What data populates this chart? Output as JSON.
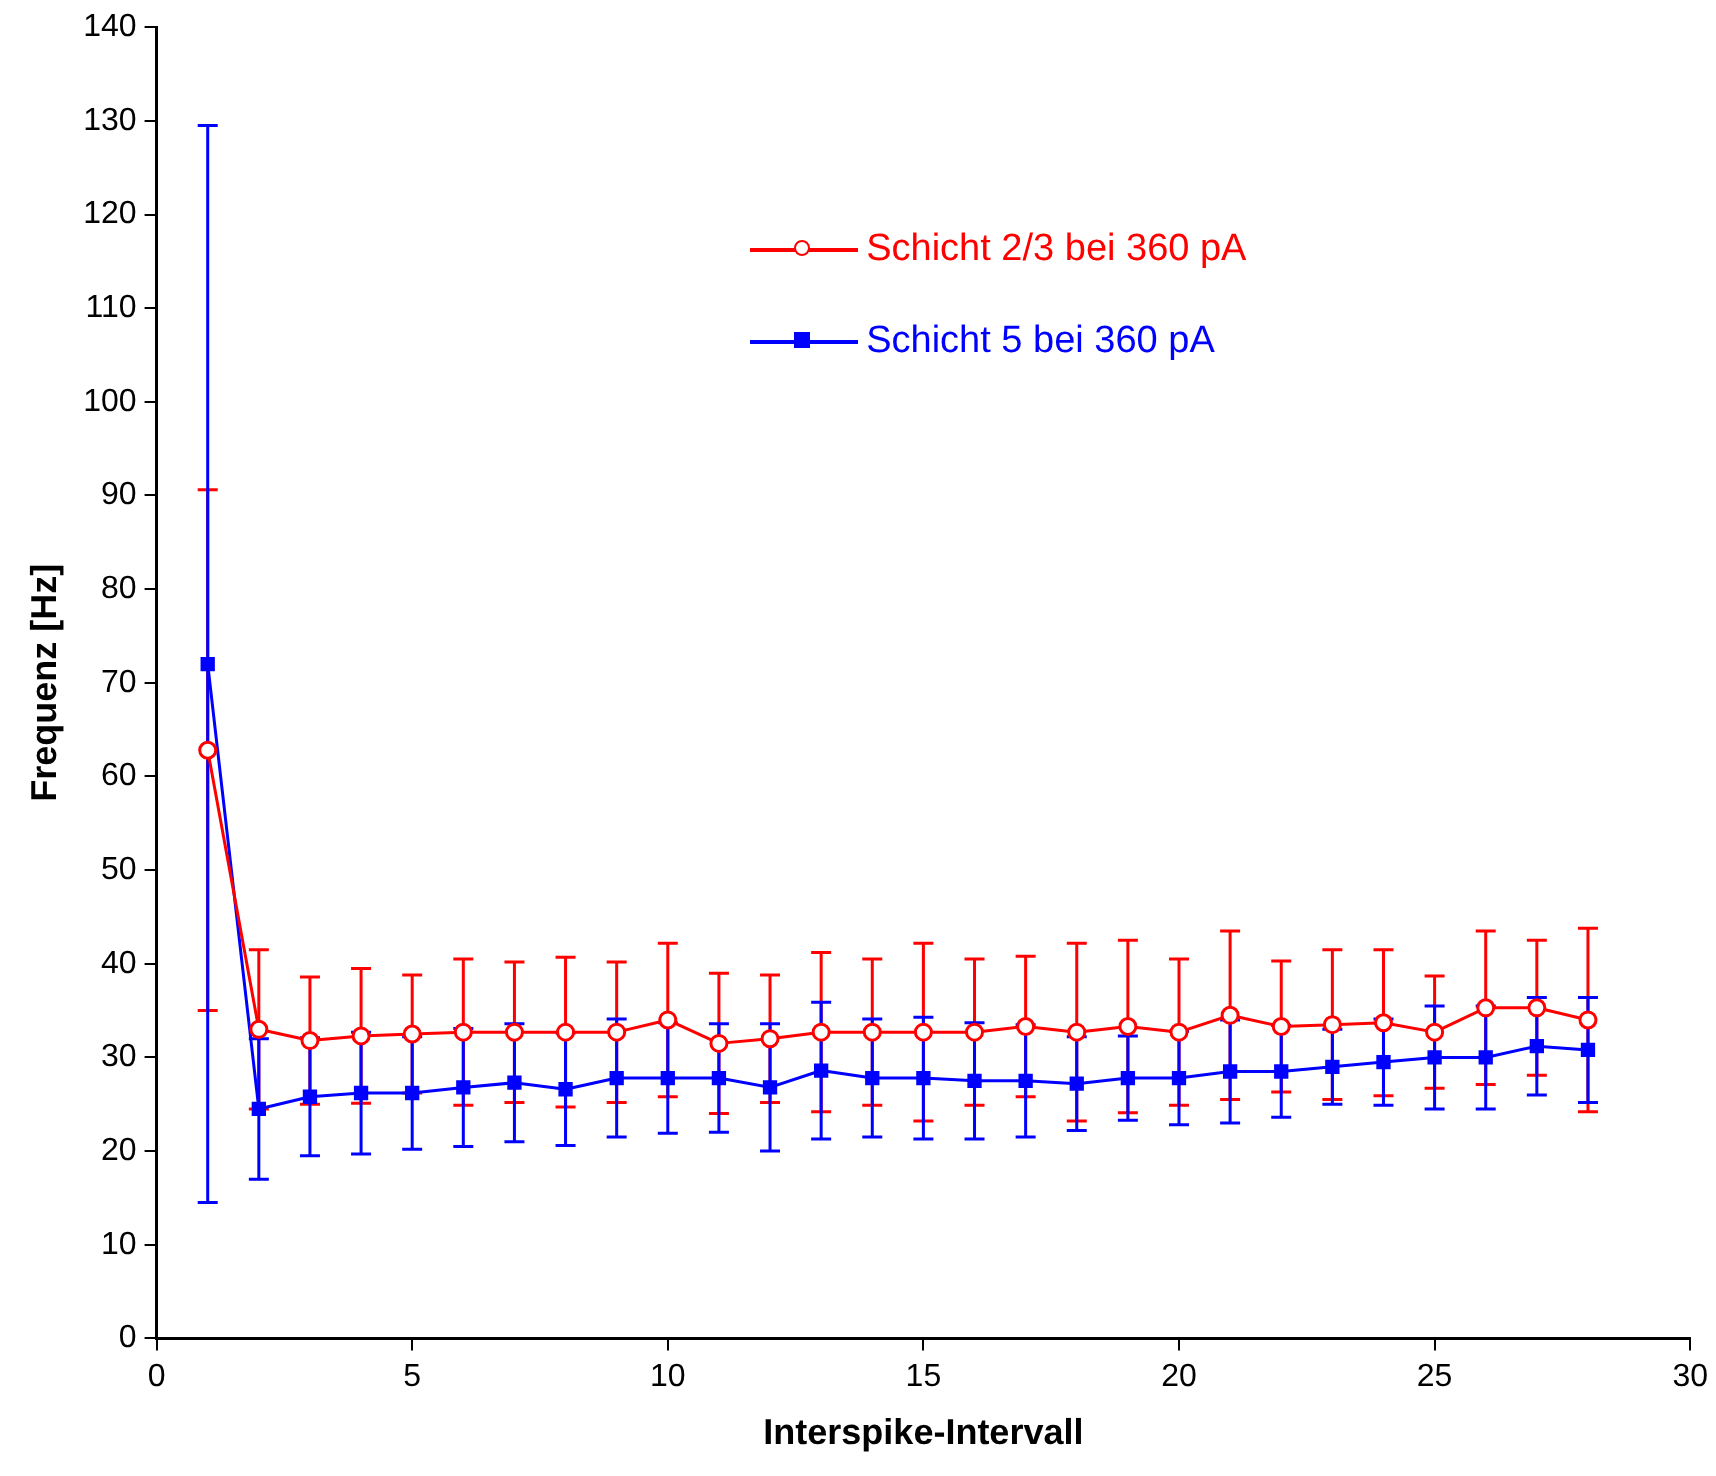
{
  "chart_data": {
    "type": "line",
    "xlabel": "Interspike-Intervall",
    "ylabel": "Frequenz [Hz]",
    "x": [
      1,
      2,
      3,
      4,
      5,
      6,
      7,
      8,
      9,
      10,
      11,
      12,
      13,
      14,
      15,
      16,
      17,
      18,
      19,
      20,
      21,
      22,
      23,
      24,
      25,
      26,
      27,
      28
    ],
    "xlim": [
      0,
      30
    ],
    "xticks": [
      0,
      5,
      10,
      15,
      20,
      25,
      30
    ],
    "ylim": [
      0,
      140
    ],
    "yticks": [
      0,
      10,
      20,
      30,
      40,
      50,
      60,
      70,
      80,
      90,
      100,
      110,
      120,
      130,
      140
    ],
    "grid": false,
    "legend": "top right",
    "line_style": "solid",
    "series": [
      {
        "name": "Schicht 2/3 bei 360 pA",
        "color": "#ff0000",
        "marker": "circle",
        "values": [
          62.8,
          33,
          31.8,
          32.3,
          32.5,
          32.7,
          32.7,
          32.7,
          32.7,
          34,
          31.5,
          32,
          32.7,
          32.7,
          32.7,
          32.7,
          33.3,
          32.7,
          33.3,
          32.7,
          34.5,
          33.3,
          33.5,
          33.7,
          32.7,
          35.3,
          35.3,
          34
        ],
        "errors": [
          27.8,
          8.5,
          6.8,
          7.2,
          6.3,
          7.8,
          7.5,
          8,
          7.5,
          8.2,
          7.5,
          6.8,
          8.5,
          7.8,
          9.5,
          7.8,
          7.5,
          9.5,
          9.2,
          7.8,
          9,
          7,
          8,
          7.8,
          6,
          8.2,
          7.2,
          9.8
        ]
      },
      {
        "name": "Schicht 5 bei 360 pA",
        "color": "#0000ff",
        "marker": "square",
        "values": [
          72,
          24.5,
          25.8,
          26.2,
          26.2,
          26.8,
          27.3,
          26.6,
          27.8,
          27.8,
          27.8,
          26.8,
          28.6,
          27.8,
          27.8,
          27.5,
          27.5,
          27.2,
          27.8,
          27.8,
          28.5,
          28.5,
          29,
          29.5,
          30,
          30,
          31.2,
          30.8
        ],
        "errors": [
          57.5,
          7.5,
          6.3,
          6.5,
          6,
          6.3,
          6.3,
          6,
          6.3,
          5.9,
          5.8,
          6.8,
          7.3,
          6.3,
          6.5,
          6.2,
          6,
          5,
          4.5,
          5,
          5.5,
          4.9,
          4,
          4.6,
          5.5,
          5.5,
          5.2,
          5.6
        ]
      }
    ]
  }
}
